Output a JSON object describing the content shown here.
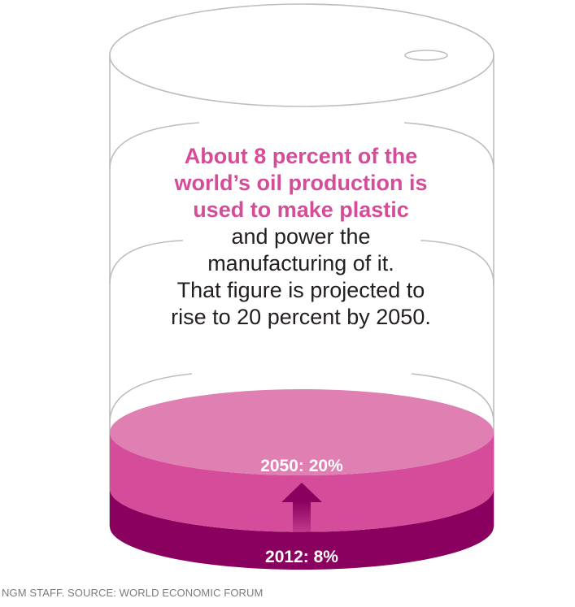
{
  "headline": {
    "highlight_lines": [
      "About 8 percent of the",
      "world’s oil production is",
      "used to make plastic"
    ],
    "body_lines": [
      "and power the",
      "manufacturing of it.",
      "That figure is projected to",
      "rise to 20 percent by 2050."
    ]
  },
  "colors": {
    "highlight": "#d44d98",
    "barrel_outline": "#bdbdbd",
    "level_2050_top": "#df7fb2",
    "level_2050_side": "#d54c9a",
    "level_2012": "#8a005f",
    "arrow": "#8a005f"
  },
  "chart_data": {
    "type": "bar",
    "categories": [
      "2012",
      "2050"
    ],
    "values": [
      8,
      20
    ],
    "unit": "percent",
    "labels": [
      "2012: 8%",
      "2050: 20%"
    ]
  },
  "credit": "NGM STAFF. SOURCE: WORLD ECONOMIC FORUM"
}
